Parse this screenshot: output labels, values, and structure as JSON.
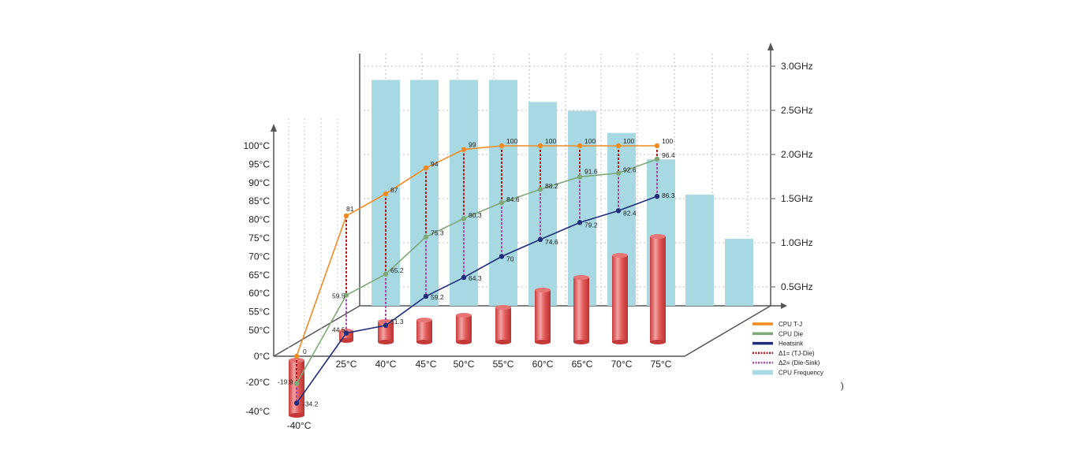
{
  "chart_data": {
    "type": "line",
    "categories": [
      "-40°C",
      "25°C",
      "40°C",
      "45°C",
      "50°C",
      "55°C",
      "60°C",
      "65°C",
      "70°C",
      "75°C"
    ],
    "y_left_ticks": [
      "100°C",
      "95°C",
      "90°C",
      "85°C",
      "80°C",
      "75°C",
      "70°C",
      "65°C",
      "60°C",
      "55°C",
      "50°C",
      "0°C",
      "-20°C",
      "-40°C"
    ],
    "y_right_ticks": [
      "3.0GHz",
      "2.5GHz",
      "2.0GHz",
      "1.5GHz",
      "1.0GHz",
      "0.5GHz"
    ],
    "series": [
      {
        "name": "CPU T-J",
        "color": "#f28a22",
        "values": [
          0,
          81,
          87,
          94,
          99,
          100,
          100,
          100,
          100,
          100
        ],
        "labels": [
          "0",
          "81",
          "87",
          "94",
          "99",
          "100",
          "100",
          "100",
          "100",
          "100"
        ]
      },
      {
        "name": "CPU Die",
        "color": "#7fa877",
        "values": [
          -19.9,
          59.5,
          65.2,
          75.3,
          80.3,
          84.6,
          88.2,
          91.6,
          92.6,
          96.4
        ],
        "labels": [
          "-19.9",
          "59.5",
          "65.2",
          "75.3",
          "80.3",
          "84.6",
          "88.2",
          "91.6",
          "92.6",
          "96.4"
        ]
      },
      {
        "name": "Heatsink",
        "color": "#1f2d7a",
        "values": [
          -34.2,
          44.5,
          51.3,
          59.2,
          64.3,
          70,
          74.6,
          79.2,
          82.4,
          86.3
        ],
        "labels": [
          "-34.2",
          "44.5",
          "51.3",
          "59.2",
          "64.3",
          "70",
          "74.6",
          "79.2",
          "82.4",
          "86.3"
        ]
      }
    ],
    "frequency": {
      "name": "CPU Frequency",
      "color": "#a8d9e3",
      "unit": "GHz",
      "values": [
        2.8,
        2.8,
        2.8,
        2.8,
        2.55,
        2.45,
        2.2,
        1.9,
        1.5,
        1.0
      ]
    },
    "delta_legend": [
      {
        "name": "Δ1= (TJ-Die)",
        "color": "#b31b1b"
      },
      {
        "name": "Δ2= (Die-Sink)",
        "color": "#a64aa8"
      }
    ],
    "cylinders": {
      "color": "#e05454",
      "values": [
        -40,
        25,
        40,
        45,
        50,
        55,
        60,
        65,
        70,
        75
      ]
    },
    "legend_position": "bottom-right",
    "stray_text": ")"
  }
}
